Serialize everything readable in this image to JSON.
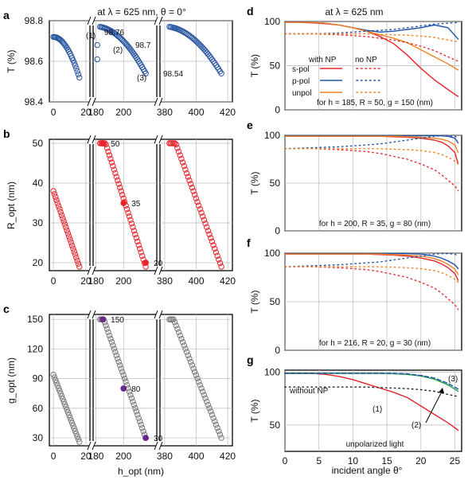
{
  "chart_data": [
    {
      "id": "a",
      "type": "scatter",
      "panel_label": "a",
      "header": "at λ = 625 nm,  θ = 0°",
      "ylabel": "T (%)",
      "ylim": [
        98.4,
        98.8
      ],
      "yticks": [
        "98.4",
        "98.6",
        "98.8"
      ],
      "xticks": [
        "0",
        "20",
        "180",
        "200",
        "380",
        "400",
        "420"
      ],
      "annotations": [
        {
          "text": "(1)",
          "x": 180,
          "y": 98.755
        },
        {
          "text": "98.76",
          "x": 190,
          "y": 98.76
        },
        {
          "text": "(2)",
          "x": 190,
          "y": 98.69
        },
        {
          "text": "98.7",
          "x": 206,
          "y": 98.7
        },
        {
          "text": "(3)",
          "x": 210,
          "y": 98.53
        },
        {
          "text": "98.54",
          "x": 221,
          "y": 98.54
        }
      ]
    },
    {
      "id": "b",
      "type": "scatter",
      "panel_label": "b",
      "ylabel": "R_opt (nm)",
      "ylim": [
        18,
        51
      ],
      "yticks": [
        "20",
        "30",
        "40",
        "50"
      ],
      "xticks": [
        "0",
        "20",
        "180",
        "200",
        "380",
        "400",
        "420"
      ],
      "highlighted": [
        {
          "x": 185,
          "y": 50,
          "label": "50"
        },
        {
          "x": 200,
          "y": 35,
          "label": "35"
        },
        {
          "x": 216,
          "y": 20,
          "label": "20"
        }
      ]
    },
    {
      "id": "c",
      "type": "scatter",
      "panel_label": "c",
      "ylabel": "g_opt (nm)",
      "xlabel": "h_opt (nm)",
      "ylim": [
        22,
        155
      ],
      "yticks": [
        "30",
        "60",
        "90",
        "120",
        "150"
      ],
      "xticks": [
        "0",
        "20",
        "180",
        "200",
        "380",
        "400",
        "420"
      ],
      "highlighted": [
        {
          "x": 185,
          "y": 150,
          "label": "150"
        },
        {
          "x": 200,
          "y": 80,
          "label": "80"
        },
        {
          "x": 216,
          "y": 30,
          "label": "30"
        }
      ]
    },
    {
      "id": "d",
      "type": "line",
      "panel_label": "d",
      "header": "at λ = 625 nm",
      "ylabel": "T (%)",
      "xlim": [
        0,
        26
      ],
      "ylim": [
        0,
        100
      ],
      "yticks": [
        "0",
        "50",
        "100"
      ],
      "caption": "for h = 185, R = 50, g = 150 (nm)",
      "legend_heads": [
        "with NP",
        "no NP"
      ],
      "legend": [
        "s-pol",
        "p-pol",
        "unpol"
      ],
      "x": [
        0,
        2,
        4,
        6,
        8,
        10,
        12,
        14,
        16,
        18,
        20,
        22,
        24,
        25.5
      ],
      "series": [
        {
          "name": "s-pol",
          "color": "#e8242b",
          "style": "solid",
          "values": [
            99,
            99,
            98.5,
            97.5,
            96,
            93,
            89,
            83,
            75,
            62,
            47,
            34,
            23,
            15
          ]
        },
        {
          "name": "p-pol",
          "color": "#2050a8",
          "style": "solid",
          "values": [
            99.5,
            99.5,
            99,
            98,
            96,
            93,
            90,
            88,
            89,
            91,
            93,
            96,
            93,
            80
          ]
        },
        {
          "name": "unpol",
          "color": "#f08020",
          "style": "solid",
          "values": [
            99,
            99,
            99,
            98,
            96,
            93,
            89,
            85,
            81,
            76,
            68,
            60,
            52,
            45
          ]
        },
        {
          "name": "s-pol",
          "color": "#e8242b",
          "style": "dotted",
          "values": [
            86,
            86,
            86,
            85.5,
            85,
            84,
            83,
            81,
            79,
            76,
            72,
            67,
            60,
            55
          ]
        },
        {
          "name": "p-pol",
          "color": "#2050a8",
          "style": "dotted",
          "values": [
            86,
            86,
            86,
            86.5,
            87,
            88,
            89,
            90,
            91,
            93,
            95,
            97,
            98,
            99
          ]
        },
        {
          "name": "unpol",
          "color": "#f08020",
          "style": "dotted",
          "values": [
            86,
            86,
            86,
            86,
            86,
            86,
            86,
            85.5,
            85,
            84.5,
            83.5,
            82,
            79,
            77
          ]
        }
      ]
    },
    {
      "id": "e",
      "type": "line",
      "panel_label": "e",
      "ylabel": "T (%)",
      "xlim": [
        0,
        26
      ],
      "ylim": [
        0,
        100
      ],
      "yticks": [
        "0",
        "50",
        "100"
      ],
      "caption": "for h = 200, R = 35, g = 80 (nm)",
      "x": [
        0,
        4,
        8,
        12,
        14,
        16,
        18,
        20,
        22,
        23,
        24,
        25,
        25.5
      ],
      "series": [
        {
          "name": "s-pol",
          "color": "#e8242b",
          "style": "solid",
          "values": [
            99,
            99,
            99,
            99,
            99,
            98.5,
            98,
            97,
            95,
            93,
            89,
            82,
            70
          ]
        },
        {
          "name": "p-pol",
          "color": "#2050a8",
          "style": "solid",
          "values": [
            99.5,
            99.5,
            99.5,
            99.5,
            99.5,
            99.5,
            99.5,
            99.5,
            99.5,
            99.5,
            99,
            97,
            92
          ]
        },
        {
          "name": "unpol",
          "color": "#f08020",
          "style": "solid",
          "values": [
            99,
            99,
            99,
            99,
            99,
            99,
            98.5,
            98,
            97,
            96,
            94,
            90,
            82
          ]
        },
        {
          "name": "s-pol",
          "color": "#e8242b",
          "style": "dotted",
          "values": [
            86,
            86,
            85,
            83,
            81,
            78,
            75,
            70,
            64,
            59,
            53,
            47,
            42
          ]
        },
        {
          "name": "p-pol",
          "color": "#2050a8",
          "style": "dotted",
          "values": [
            86,
            87,
            88,
            90,
            91,
            93,
            95,
            97,
            99,
            99.5,
            99.5,
            99,
            97
          ]
        },
        {
          "name": "unpol",
          "color": "#f08020",
          "style": "dotted",
          "values": [
            86,
            86,
            86,
            86,
            86,
            85.5,
            85,
            84,
            82,
            80,
            77,
            73,
            70
          ]
        }
      ]
    },
    {
      "id": "f",
      "type": "line",
      "panel_label": "f",
      "ylabel": "T (%)",
      "xlim": [
        0,
        26
      ],
      "ylim": [
        0,
        100
      ],
      "yticks": [
        "0",
        "50",
        "100"
      ],
      "caption": "for h = 216, R = 20, g = 30 (nm)",
      "x": [
        0,
        4,
        8,
        12,
        14,
        16,
        18,
        20,
        22,
        23,
        24,
        25,
        25.5
      ],
      "series": [
        {
          "name": "s-pol",
          "color": "#e8242b",
          "style": "solid",
          "values": [
            99,
            99,
            99,
            99,
            98.5,
            98,
            97,
            95,
            92,
            89,
            85,
            79,
            72
          ]
        },
        {
          "name": "p-pol",
          "color": "#2050a8",
          "style": "solid",
          "values": [
            99.5,
            99.5,
            99.5,
            99.5,
            99.5,
            99.5,
            99.5,
            99,
            97,
            95,
            92,
            88,
            84
          ]
        },
        {
          "name": "unpol",
          "color": "#f08020",
          "style": "solid",
          "values": [
            99,
            99,
            99,
            99,
            99,
            98.5,
            98,
            97,
            94.5,
            92,
            88.5,
            83.5,
            78
          ]
        },
        {
          "name": "s-pol",
          "color": "#e8242b",
          "style": "dotted",
          "values": [
            86,
            86,
            85,
            83,
            81,
            78,
            75,
            70,
            64,
            59,
            53,
            47,
            42
          ]
        },
        {
          "name": "p-pol",
          "color": "#2050a8",
          "style": "dotted",
          "values": [
            86,
            87,
            88,
            90,
            91,
            93,
            95,
            97,
            99,
            99.5,
            99.5,
            99,
            97
          ]
        },
        {
          "name": "unpol",
          "color": "#f08020",
          "style": "dotted",
          "values": [
            86,
            86,
            86,
            86,
            86,
            85.5,
            85,
            84,
            82,
            80,
            77,
            73,
            70
          ]
        }
      ]
    },
    {
      "id": "g",
      "type": "line",
      "panel_label": "g",
      "ylabel": "T (%)",
      "xlabel": "incident angle θ°",
      "xlim": [
        0,
        26
      ],
      "ylim": [
        25,
        102
      ],
      "yticks": [
        "50",
        "100"
      ],
      "xticks": [
        "0",
        "5",
        "10",
        "15",
        "20",
        "25"
      ],
      "caption": "unpolarized light",
      "annotations": [
        {
          "text": "without NP",
          "x": 0.5,
          "y": 79
        },
        {
          "text": "(1)",
          "x": 15.5,
          "y": 63
        },
        {
          "text": "(2)",
          "x": 20.5,
          "y": 80
        },
        {
          "text": "(3)",
          "x": 24.6,
          "y": 96
        }
      ],
      "x": [
        0,
        2,
        4,
        6,
        8,
        10,
        12,
        14,
        16,
        18,
        20,
        22,
        24,
        25.5
      ],
      "series": [
        {
          "name": "(1)",
          "color": "#e8242b",
          "style": "solid",
          "values": [
            99,
            99,
            99,
            98,
            96,
            93,
            89,
            85,
            81,
            76,
            68,
            60,
            52,
            45
          ]
        },
        {
          "name": "(2)",
          "color": "#20a040",
          "style": "solid",
          "values": [
            99,
            99,
            99,
            99,
            99,
            99,
            99,
            99,
            98.5,
            98,
            96.5,
            93.5,
            88,
            82
          ]
        },
        {
          "name": "(3)",
          "color": "#2050a8",
          "style": "dashed",
          "values": [
            99,
            99,
            99,
            99,
            99,
            99,
            99,
            99,
            99,
            98.5,
            97,
            94.5,
            89.5,
            84
          ]
        },
        {
          "name": "without NP",
          "color": "#222222",
          "style": "dotted",
          "values": [
            86,
            86,
            86,
            86,
            86,
            86,
            86,
            85.5,
            85,
            84.5,
            83.5,
            82,
            79,
            77
          ]
        }
      ]
    }
  ]
}
